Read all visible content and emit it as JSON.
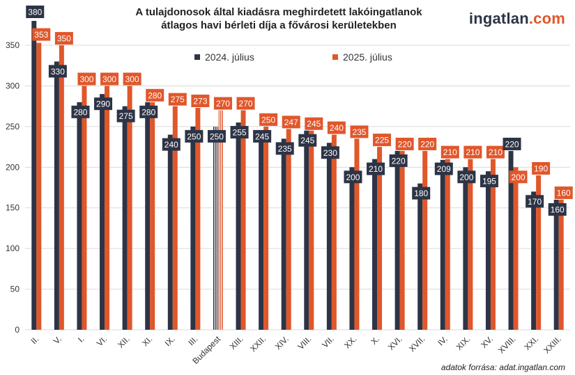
{
  "title_line1": "A tulajdonosok által kiadásra meghirdetett lakóingatlanok",
  "title_line2": "átlagos havi bérleti díja a fővárosi kerületekben",
  "logo": {
    "brand": "ingatlan",
    "tld": ".com"
  },
  "source": "adatok forrása: adat.ingatlan.com",
  "colors": {
    "series_2024": "#2d3446",
    "series_2025": "#e0572b",
    "grid": "#d9d9d9"
  },
  "chart_data": {
    "type": "bar",
    "categories": [
      "II.",
      "V.",
      "I.",
      "VI.",
      "XII.",
      "XI.",
      "IX.",
      "III.",
      "Budapest",
      "XIII.",
      "XXII.",
      "XIV.",
      "VIII.",
      "VII.",
      "XX.",
      "X.",
      "XVI.",
      "XVII.",
      "IV.",
      "XIX.",
      "XV.",
      "XVIII.",
      "XXI.",
      "XXIII."
    ],
    "series": [
      {
        "name": "2024. július",
        "values": [
          380,
          330,
          280,
          290,
          275,
          280,
          240,
          250,
          250,
          255,
          245,
          235,
          245,
          230,
          200,
          210,
          220,
          180,
          209,
          200,
          195,
          220,
          170,
          160
        ]
      },
      {
        "name": "2025. július",
        "values": [
          353,
          350,
          300,
          300,
          300,
          280,
          275,
          273,
          270,
          270,
          250,
          247,
          245,
          240,
          235,
          225,
          220,
          220,
          210,
          210,
          210,
          200,
          190,
          160
        ]
      }
    ],
    "highlight_category": "Budapest",
    "yticks": [
      0,
      50,
      100,
      150,
      200,
      250,
      300,
      350
    ],
    "ylim": [
      0,
      380
    ],
    "grid": true,
    "legend_position": "top"
  }
}
